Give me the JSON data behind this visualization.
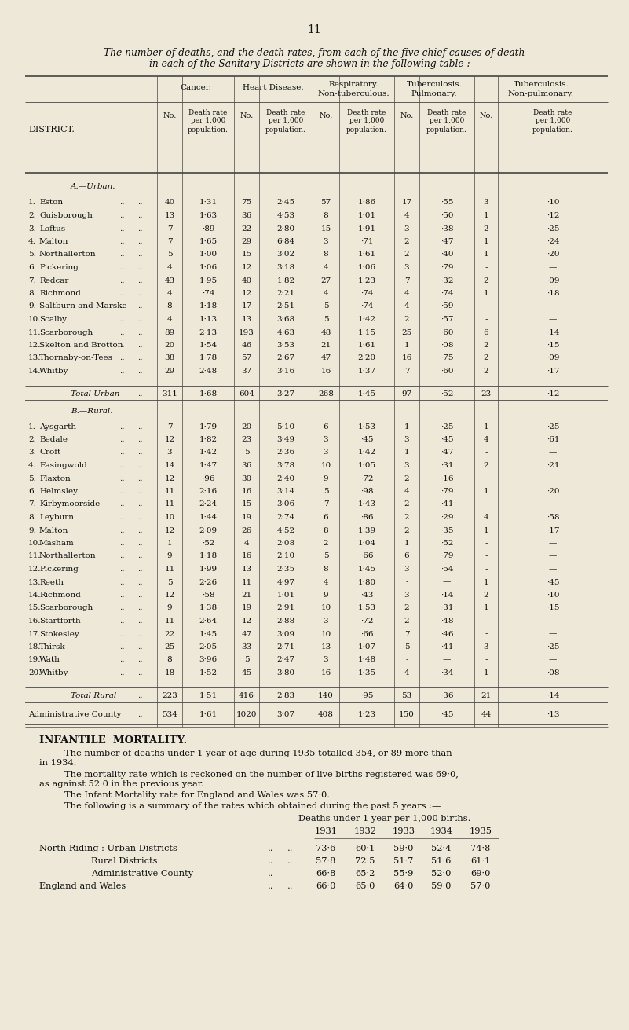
{
  "page_number": "11",
  "title_line1": "The number of deaths, and the death rates, from each of the five chief causes of death",
  "title_line2": "in each of the Sanitary Districts are shown in the following table :—",
  "bg_color": "#ede8d8",
  "section_a_label": "A.—Urban.",
  "section_b_label": "B.—Rural.",
  "urban_rows": [
    [
      "1.",
      "Eston",
      "40",
      "1·31",
      "75",
      "2·45",
      "57",
      "1·86",
      "17",
      "·55",
      "3",
      "·10"
    ],
    [
      "2.",
      "Guisborough",
      "13",
      "1·63",
      "36",
      "4·53",
      "8",
      "1·01",
      "4",
      "·50",
      "1",
      "·12"
    ],
    [
      "3.",
      "Loftus",
      "7",
      "·89",
      "22",
      "2·80",
      "15",
      "1·91",
      "3",
      "·38",
      "2",
      "·25"
    ],
    [
      "4.",
      "Malton",
      "7",
      "1·65",
      "29",
      "6·84",
      "3",
      "·71",
      "2",
      "·47",
      "1",
      "·24"
    ],
    [
      "5.",
      "Northallerton",
      "5",
      "1·00",
      "15",
      "3·02",
      "8",
      "1·61",
      "2",
      "·40",
      "1",
      "·20"
    ],
    [
      "6.",
      "Pickering",
      "4",
      "1·06",
      "12",
      "3·18",
      "4",
      "1·06",
      "3",
      "·79",
      "-",
      "—"
    ],
    [
      "7.",
      "Redcar",
      "43",
      "1·95",
      "40",
      "1·82",
      "27",
      "1·23",
      "7",
      "·32",
      "2",
      "·09"
    ],
    [
      "8.",
      "Richmond",
      "4",
      "·74",
      "12",
      "2·21",
      "4",
      "·74",
      "4",
      "·74",
      "1",
      "·18"
    ],
    [
      "9.",
      "Saltburn and Marske",
      "8",
      "1·18",
      "17",
      "2·51",
      "5",
      "·74",
      "4",
      "·59",
      "-",
      "—"
    ],
    [
      "10.",
      "Scalby",
      "4",
      "1·13",
      "13",
      "3·68",
      "5",
      "1·42",
      "2",
      "·57",
      "-",
      "—"
    ],
    [
      "11.",
      "Scarborough",
      "89",
      "2·13",
      "193",
      "4·63",
      "48",
      "1·15",
      "25",
      "·60",
      "6",
      "·14"
    ],
    [
      "12.",
      "Skelton and Brotton",
      "20",
      "1·54",
      "46",
      "3·53",
      "21",
      "1·61",
      "1",
      "·08",
      "2",
      "·15"
    ],
    [
      "13.",
      "Thornaby-on-Tees",
      "38",
      "1·78",
      "57",
      "2·67",
      "47",
      "2·20",
      "16",
      "·75",
      "2",
      "·09"
    ],
    [
      "14.",
      "Whitby",
      "29",
      "2·48",
      "37",
      "3·16",
      "16",
      "1·37",
      "7",
      "·60",
      "2",
      "·17"
    ]
  ],
  "urban_total": [
    "311",
    "1·68",
    "604",
    "3·27",
    "268",
    "1·45",
    "97",
    "·52",
    "23",
    "·12"
  ],
  "rural_rows": [
    [
      "1.",
      "Aysgarth",
      "7",
      "1·79",
      "20",
      "5·10",
      "6",
      "1·53",
      "1",
      "·25",
      "1",
      "·25"
    ],
    [
      "2.",
      "Bedale",
      "12",
      "1·82",
      "23",
      "3·49",
      "3",
      "·45",
      "3",
      "·45",
      "4",
      "·61"
    ],
    [
      "3.",
      "Croft",
      "3",
      "1·42",
      "5",
      "2·36",
      "3",
      "1·42",
      "1",
      "·47",
      "-",
      "—"
    ],
    [
      "4.",
      "Easingwold",
      "14",
      "1·47",
      "36",
      "3·78",
      "10",
      "1·05",
      "3",
      "·31",
      "2",
      "·21"
    ],
    [
      "5.",
      "Flaxton",
      "12",
      "·96",
      "30",
      "2·40",
      "9",
      "·72",
      "2",
      "·16",
      "-",
      "—"
    ],
    [
      "6.",
      "Helmsley",
      "11",
      "2·16",
      "16",
      "3·14",
      "5",
      "·98",
      "4",
      "·79",
      "1",
      "·20"
    ],
    [
      "7.",
      "Kirbymoorside",
      "11",
      "2·24",
      "15",
      "3·06",
      "7",
      "1·43",
      "2",
      "·41",
      "-",
      "—"
    ],
    [
      "8.",
      "Leyburn",
      "10",
      "1·44",
      "19",
      "2·74",
      "6",
      "·86",
      "2",
      "·29",
      "4",
      "·58"
    ],
    [
      "9.",
      "Malton",
      "12",
      "2·09",
      "26",
      "4·52",
      "8",
      "1·39",
      "2",
      "·35",
      "1",
      "·17"
    ],
    [
      "10.",
      "Masham",
      "1",
      "·52",
      "4",
      "2·08",
      "2",
      "1·04",
      "1",
      "·52",
      "-",
      "—"
    ],
    [
      "11.",
      "Northallerton",
      "9",
      "1·18",
      "16",
      "2·10",
      "5",
      "·66",
      "6",
      "·79",
      "-",
      "—"
    ],
    [
      "12.",
      "Pickering",
      "11",
      "1·99",
      "13",
      "2·35",
      "8",
      "1·45",
      "3",
      "·54",
      "-",
      "—"
    ],
    [
      "13.",
      "Reeth",
      "5",
      "2·26",
      "11",
      "4·97",
      "4",
      "1·80",
      "-",
      "—",
      "1",
      "·45"
    ],
    [
      "14.",
      "Richmond",
      "12",
      "·58",
      "21",
      "1·01",
      "9",
      "·43",
      "3",
      "·14",
      "2",
      "·10"
    ],
    [
      "15.",
      "Scarborough",
      "9",
      "1·38",
      "19",
      "2·91",
      "10",
      "1·53",
      "2",
      "·31",
      "1",
      "·15"
    ],
    [
      "16.",
      "Startforth",
      "11",
      "2·64",
      "12",
      "2·88",
      "3",
      "·72",
      "2",
      "·48",
      "-",
      "—"
    ],
    [
      "17.",
      "Stokesley",
      "22",
      "1·45",
      "47",
      "3·09",
      "10",
      "·66",
      "7",
      "·46",
      "-",
      "—"
    ],
    [
      "18.",
      "Thirsk",
      "25",
      "2·05",
      "33",
      "2·71",
      "13",
      "1·07",
      "5",
      "·41",
      "3",
      "·25"
    ],
    [
      "19.",
      "Wath",
      "8",
      "3·96",
      "5",
      "2·47",
      "3",
      "1·48",
      "-",
      "—",
      "-",
      "—"
    ],
    [
      "20.",
      "Whitby",
      "18",
      "1·52",
      "45",
      "3·80",
      "16",
      "1·35",
      "4",
      "·34",
      "1",
      "·08"
    ]
  ],
  "rural_total": [
    "223",
    "1·51",
    "416",
    "2·83",
    "140",
    "·95",
    "53",
    "·36",
    "21",
    "·14"
  ],
  "admin_county": [
    "534",
    "1·61",
    "1020",
    "3·07",
    "408",
    "1·23",
    "150",
    "·45",
    "44",
    "·13"
  ],
  "infantile_section": {
    "heading": "INFANTILE  MORTALITY.",
    "para1a": "The number of deaths under 1 year of age during 1935 totalled 354, or 89 more than",
    "para1b": "in 1934.",
    "para2a": "The mortality rate which is reckoned on the number of live births registered was 69·0,",
    "para2b": "as against 52·0 in the previous year.",
    "para3": "The Infant Mortality rate for England and Wales was 57·0.",
    "para4": "The following is a summary of the rates which obtained during the past 5 years :—",
    "sub_header": "Deaths under 1 year per 1,000 births.",
    "years": [
      "1931",
      "1932",
      "1933",
      "1934",
      "1935"
    ],
    "inf_rows": [
      [
        "North Riding : Urban Districts",
        "73·6",
        "60·1",
        "59·0",
        "52·4",
        "74·8"
      ],
      [
        "Rural Districts",
        "57·8",
        "72·5",
        "51·7",
        "51·6",
        "61·1"
      ],
      [
        "Administrative County",
        "66·8",
        "65·2",
        "55·9",
        "52·0",
        "69·0"
      ],
      [
        "England and Wales",
        "66·0",
        "65·0",
        "64·0",
        "59·0",
        "57·0"
      ]
    ]
  }
}
